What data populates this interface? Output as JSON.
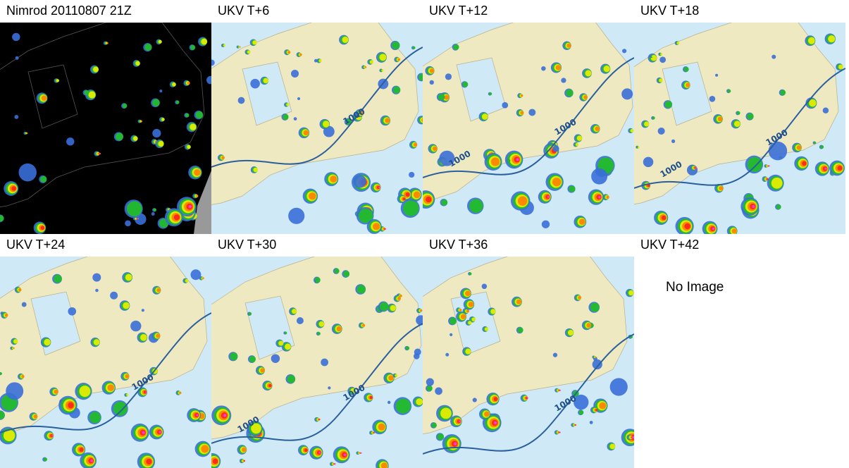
{
  "panels": [
    {
      "title": "Nimrod 20110807 21Z",
      "kind": "radar"
    },
    {
      "title": "UKV T+6",
      "kind": "model",
      "contour_labels": [
        "1000"
      ]
    },
    {
      "title": "UKV T+12",
      "kind": "model",
      "contour_labels": [
        "1000",
        "1000"
      ]
    },
    {
      "title": "UKV T+18",
      "kind": "model",
      "contour_labels": [
        "1000",
        "1000"
      ]
    },
    {
      "title": "UKV T+24",
      "kind": "model",
      "contour_labels": [
        "1000"
      ]
    },
    {
      "title": "UKV T+30",
      "kind": "model",
      "contour_labels": [
        "1000",
        "1000"
      ]
    },
    {
      "title": "UKV T+36",
      "kind": "model",
      "contour_labels": [
        "1000"
      ]
    },
    {
      "title": "UKV T+42",
      "kind": "empty",
      "message": "No Image"
    }
  ]
}
